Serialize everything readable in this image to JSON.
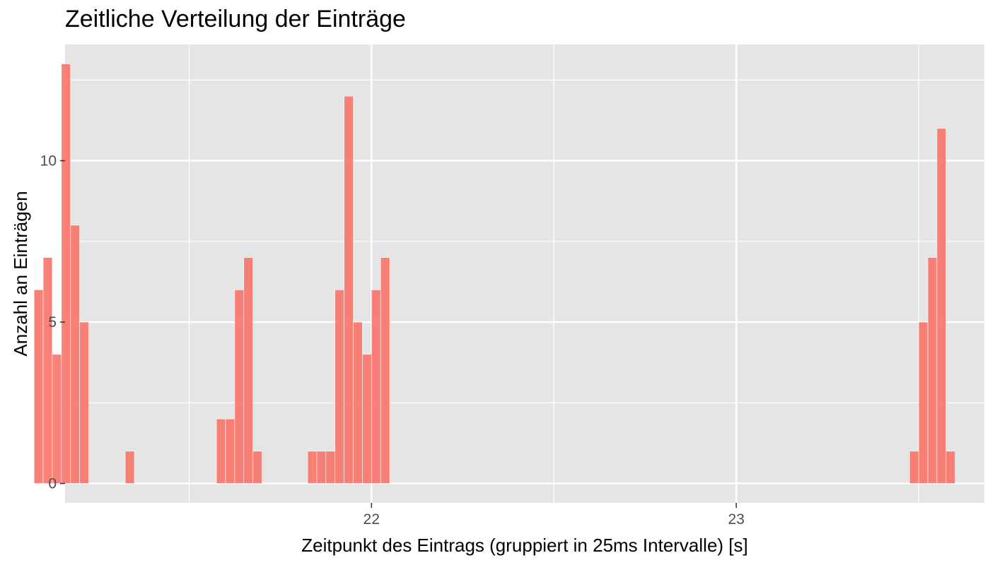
{
  "chart_data": {
    "type": "bar",
    "title": "Zeitliche Verteilung der Einträge",
    "xlabel": "Zeitpunkt des Eintrags (gruppiert in 25ms Intervalle) [s]",
    "ylabel": "Anzahl an Einträgen",
    "bin_width": 0.025,
    "xlim": [
      21.16,
      23.68
    ],
    "ylim": [
      -0.6,
      13.6
    ],
    "x_ticks": [
      22,
      23
    ],
    "x_minor_ticks": [
      21.5,
      22.5,
      23.5
    ],
    "y_ticks": [
      0,
      5,
      10
    ],
    "y_minor_ticks": [
      2.5,
      7.5,
      12.5
    ],
    "grid": true,
    "bar_color": "#F8766D",
    "panel_color": "#E5E5E5",
    "grid_color": "#FFFFFF",
    "bars": [
      {
        "x": 21.0875,
        "count": 6
      },
      {
        "x": 21.1125,
        "count": 7
      },
      {
        "x": 21.1375,
        "count": 4
      },
      {
        "x": 21.1625,
        "count": 13
      },
      {
        "x": 21.1875,
        "count": 8
      },
      {
        "x": 21.2125,
        "count": 5
      },
      {
        "x": 21.3375,
        "count": 1
      },
      {
        "x": 21.5875,
        "count": 2
      },
      {
        "x": 21.6125,
        "count": 2
      },
      {
        "x": 21.6375,
        "count": 6
      },
      {
        "x": 21.6625,
        "count": 7
      },
      {
        "x": 21.6875,
        "count": 1
      },
      {
        "x": 21.8375,
        "count": 1
      },
      {
        "x": 21.8625,
        "count": 1
      },
      {
        "x": 21.8875,
        "count": 1
      },
      {
        "x": 21.9125,
        "count": 6
      },
      {
        "x": 21.9375,
        "count": 12
      },
      {
        "x": 21.9625,
        "count": 5
      },
      {
        "x": 21.9875,
        "count": 4
      },
      {
        "x": 22.0125,
        "count": 6
      },
      {
        "x": 22.0375,
        "count": 7
      },
      {
        "x": 23.4875,
        "count": 1
      },
      {
        "x": 23.5125,
        "count": 5
      },
      {
        "x": 23.5375,
        "count": 7
      },
      {
        "x": 23.5625,
        "count": 11
      },
      {
        "x": 23.5875,
        "count": 1
      }
    ]
  }
}
